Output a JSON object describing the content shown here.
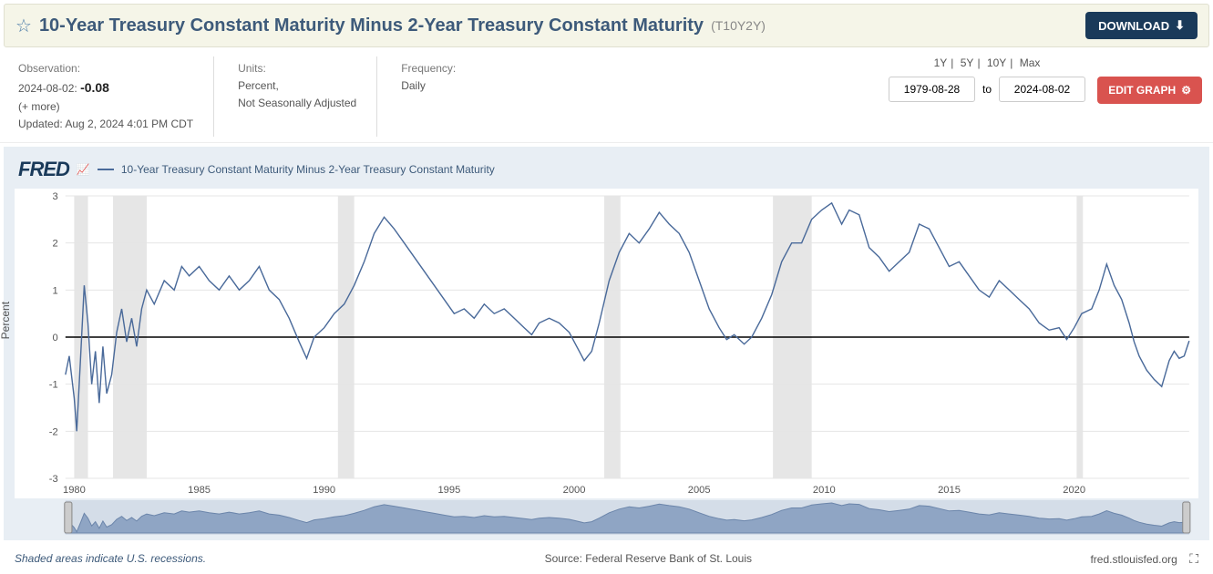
{
  "header": {
    "title": "10-Year Treasury Constant Maturity Minus 2-Year Treasury Constant Maturity",
    "code": "(T10Y2Y)",
    "download_label": "DOWNLOAD"
  },
  "meta": {
    "observation_label": "Observation:",
    "observation_date": "2024-08-02:",
    "observation_value": "-0.08",
    "more": "(+ more)",
    "updated": "Updated: Aug 2, 2024 4:01 PM CDT",
    "units_label": "Units:",
    "units_line1": "Percent,",
    "units_line2": "Not Seasonally Adjusted",
    "frequency_label": "Frequency:",
    "frequency_value": "Daily"
  },
  "range": {
    "links": [
      "1Y",
      "5Y",
      "10Y",
      "Max"
    ],
    "start": "1979-08-28",
    "to": "to",
    "end": "2024-08-02",
    "edit_label": "EDIT GRAPH"
  },
  "legend": {
    "logo": "FRED",
    "series": "10-Year Treasury Constant Maturity Minus 2-Year Treasury Constant Maturity"
  },
  "chart": {
    "type": "line",
    "ylabel": "Percent",
    "ylim": [
      -3,
      3
    ],
    "yticks": [
      -3,
      -2,
      -1,
      0,
      1,
      2,
      3
    ],
    "xlim": [
      1979.65,
      2024.6
    ],
    "xticks": [
      1980,
      1985,
      1990,
      1995,
      2000,
      2005,
      2010,
      2015,
      2020
    ],
    "line_color": "#4a6a9a",
    "line_width": 1.4,
    "zero_line_color": "#000000",
    "grid_color": "#e5e5e5",
    "background_color": "#ffffff",
    "recession_color": "#e6e6e6",
    "recessions": [
      [
        1980.0,
        1980.55
      ],
      [
        1981.55,
        1982.9
      ],
      [
        1990.55,
        1991.2
      ],
      [
        2001.2,
        2001.85
      ],
      [
        2007.95,
        2009.5
      ],
      [
        2020.1,
        2020.35
      ]
    ],
    "series": [
      [
        1979.65,
        -0.8
      ],
      [
        1979.8,
        -0.4
      ],
      [
        1980.0,
        -1.3
      ],
      [
        1980.1,
        -2.0
      ],
      [
        1980.25,
        -0.5
      ],
      [
        1980.4,
        1.1
      ],
      [
        1980.55,
        0.3
      ],
      [
        1980.7,
        -1.0
      ],
      [
        1980.85,
        -0.3
      ],
      [
        1981.0,
        -1.4
      ],
      [
        1981.15,
        -0.2
      ],
      [
        1981.3,
        -1.2
      ],
      [
        1981.5,
        -0.8
      ],
      [
        1981.7,
        0.1
      ],
      [
        1981.9,
        0.6
      ],
      [
        1982.1,
        -0.1
      ],
      [
        1982.3,
        0.4
      ],
      [
        1982.5,
        -0.2
      ],
      [
        1982.7,
        0.6
      ],
      [
        1982.9,
        1.0
      ],
      [
        1983.2,
        0.7
      ],
      [
        1983.6,
        1.2
      ],
      [
        1984.0,
        1.0
      ],
      [
        1984.3,
        1.5
      ],
      [
        1984.6,
        1.3
      ],
      [
        1985.0,
        1.5
      ],
      [
        1985.4,
        1.2
      ],
      [
        1985.8,
        1.0
      ],
      [
        1986.2,
        1.3
      ],
      [
        1986.6,
        1.0
      ],
      [
        1987.0,
        1.2
      ],
      [
        1987.4,
        1.5
      ],
      [
        1987.8,
        1.0
      ],
      [
        1988.2,
        0.8
      ],
      [
        1988.6,
        0.4
      ],
      [
        1989.0,
        -0.1
      ],
      [
        1989.3,
        -0.45
      ],
      [
        1989.6,
        0.0
      ],
      [
        1990.0,
        0.2
      ],
      [
        1990.4,
        0.5
      ],
      [
        1990.8,
        0.7
      ],
      [
        1991.2,
        1.1
      ],
      [
        1991.6,
        1.6
      ],
      [
        1992.0,
        2.2
      ],
      [
        1992.4,
        2.55
      ],
      [
        1992.8,
        2.3
      ],
      [
        1993.2,
        2.0
      ],
      [
        1993.6,
        1.7
      ],
      [
        1994.0,
        1.4
      ],
      [
        1994.4,
        1.1
      ],
      [
        1994.8,
        0.8
      ],
      [
        1995.2,
        0.5
      ],
      [
        1995.6,
        0.6
      ],
      [
        1996.0,
        0.4
      ],
      [
        1996.4,
        0.7
      ],
      [
        1996.8,
        0.5
      ],
      [
        1997.2,
        0.6
      ],
      [
        1997.6,
        0.4
      ],
      [
        1998.0,
        0.2
      ],
      [
        1998.3,
        0.05
      ],
      [
        1998.6,
        0.3
      ],
      [
        1999.0,
        0.4
      ],
      [
        1999.4,
        0.3
      ],
      [
        1999.8,
        0.1
      ],
      [
        2000.1,
        -0.2
      ],
      [
        2000.4,
        -0.5
      ],
      [
        2000.7,
        -0.3
      ],
      [
        2001.0,
        0.3
      ],
      [
        2001.4,
        1.2
      ],
      [
        2001.8,
        1.8
      ],
      [
        2002.2,
        2.2
      ],
      [
        2002.6,
        2.0
      ],
      [
        2003.0,
        2.3
      ],
      [
        2003.4,
        2.65
      ],
      [
        2003.8,
        2.4
      ],
      [
        2004.2,
        2.2
      ],
      [
        2004.6,
        1.8
      ],
      [
        2005.0,
        1.2
      ],
      [
        2005.4,
        0.6
      ],
      [
        2005.8,
        0.2
      ],
      [
        2006.1,
        -0.05
      ],
      [
        2006.4,
        0.05
      ],
      [
        2006.8,
        -0.15
      ],
      [
        2007.1,
        0.0
      ],
      [
        2007.5,
        0.4
      ],
      [
        2007.9,
        0.9
      ],
      [
        2008.3,
        1.6
      ],
      [
        2008.7,
        2.0
      ],
      [
        2009.1,
        2.0
      ],
      [
        2009.5,
        2.5
      ],
      [
        2009.9,
        2.7
      ],
      [
        2010.3,
        2.85
      ],
      [
        2010.7,
        2.4
      ],
      [
        2011.0,
        2.7
      ],
      [
        2011.4,
        2.6
      ],
      [
        2011.8,
        1.9
      ],
      [
        2012.2,
        1.7
      ],
      [
        2012.6,
        1.4
      ],
      [
        2013.0,
        1.6
      ],
      [
        2013.4,
        1.8
      ],
      [
        2013.8,
        2.4
      ],
      [
        2014.2,
        2.3
      ],
      [
        2014.6,
        1.9
      ],
      [
        2015.0,
        1.5
      ],
      [
        2015.4,
        1.6
      ],
      [
        2015.8,
        1.3
      ],
      [
        2016.2,
        1.0
      ],
      [
        2016.6,
        0.85
      ],
      [
        2017.0,
        1.2
      ],
      [
        2017.4,
        1.0
      ],
      [
        2017.8,
        0.8
      ],
      [
        2018.2,
        0.6
      ],
      [
        2018.6,
        0.3
      ],
      [
        2019.0,
        0.15
      ],
      [
        2019.4,
        0.2
      ],
      [
        2019.7,
        -0.05
      ],
      [
        2020.0,
        0.2
      ],
      [
        2020.3,
        0.5
      ],
      [
        2020.7,
        0.6
      ],
      [
        2021.0,
        1.0
      ],
      [
        2021.3,
        1.55
      ],
      [
        2021.6,
        1.1
      ],
      [
        2021.9,
        0.8
      ],
      [
        2022.2,
        0.3
      ],
      [
        2022.4,
        -0.1
      ],
      [
        2022.6,
        -0.4
      ],
      [
        2022.9,
        -0.7
      ],
      [
        2023.2,
        -0.9
      ],
      [
        2023.5,
        -1.05
      ],
      [
        2023.8,
        -0.5
      ],
      [
        2024.0,
        -0.3
      ],
      [
        2024.2,
        -0.45
      ],
      [
        2024.4,
        -0.4
      ],
      [
        2024.6,
        -0.08
      ]
    ]
  },
  "footer": {
    "note": "Shaded areas indicate U.S. recessions.",
    "source": "Source: Federal Reserve Bank of St. Louis",
    "site": "fred.stlouisfed.org"
  }
}
